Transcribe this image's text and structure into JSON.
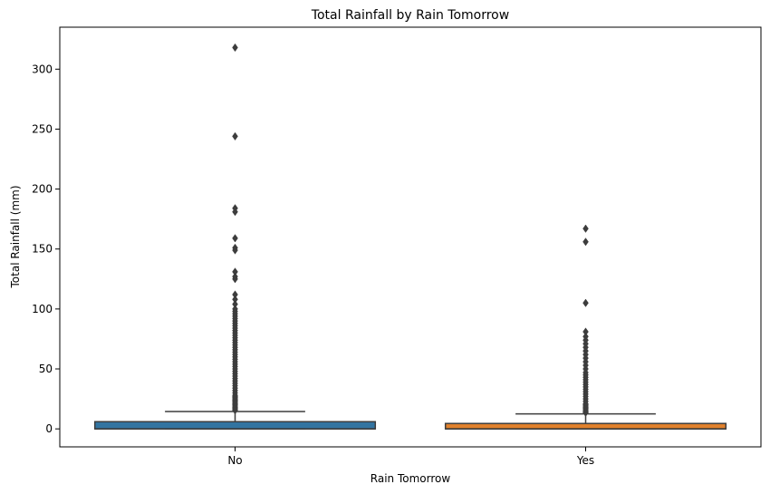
{
  "chart_data": {
    "type": "box",
    "title": "Total Rainfall by Rain Tomorrow",
    "xlabel": "Rain Tomorrow",
    "ylabel": "Total Rainfall (mm)",
    "ylim": [
      -15,
      335
    ],
    "yticks": [
      0,
      50,
      100,
      150,
      200,
      250,
      300
    ],
    "grid": false,
    "series": [
      {
        "category": "No",
        "color": "#3274a1",
        "min": 0,
        "q1": 0,
        "median": 0,
        "q3": 6,
        "whisker_high": 14.5,
        "outliers": [
          318,
          244,
          184,
          181,
          159,
          151,
          149,
          131,
          127,
          125,
          112,
          108,
          104,
          100,
          98,
          96,
          94,
          92,
          90,
          88,
          86,
          84,
          82,
          80,
          78,
          76,
          74,
          72,
          70,
          68,
          66,
          64,
          62,
          60,
          58,
          56,
          54,
          52,
          50,
          48,
          46,
          44,
          42,
          40,
          38,
          36,
          34,
          32,
          30,
          28,
          27,
          26,
          25,
          24,
          23,
          22,
          21,
          20,
          19,
          18,
          17,
          16,
          15.5
        ]
      },
      {
        "category": "Yes",
        "color": "#e1812c",
        "min": 0,
        "q1": 0,
        "median": 0,
        "q3": 4.5,
        "whisker_high": 12.5,
        "outliers": [
          167,
          156,
          105,
          81,
          77,
          74,
          71,
          68,
          65,
          62,
          59,
          56,
          53,
          50,
          47,
          45,
          43,
          41,
          39,
          37,
          35,
          33,
          31,
          29,
          27,
          25,
          23,
          21,
          20,
          19,
          18,
          17,
          16,
          15,
          14,
          13.5
        ]
      }
    ]
  }
}
